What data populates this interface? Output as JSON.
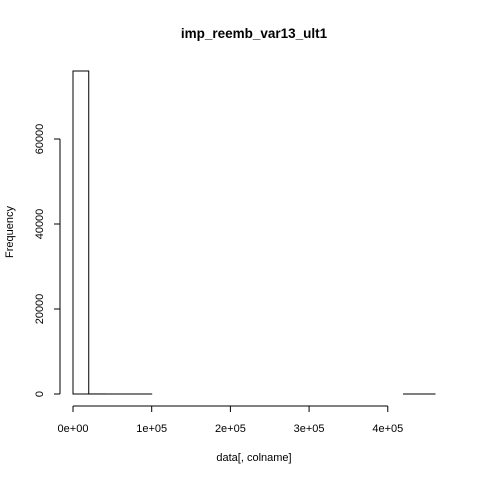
{
  "chart_data": {
    "type": "bar",
    "subtype": "histogram",
    "title": "imp_reemb_var13_ult1",
    "xlabel": "data[, colname]",
    "ylabel": "Frequency",
    "xlim": [
      0,
      460000
    ],
    "ylim": [
      0,
      76000
    ],
    "x_ticks": [
      0,
      100000,
      200000,
      300000,
      400000
    ],
    "x_tick_labels": [
      "0e+00",
      "1e+05",
      "2e+05",
      "3e+05",
      "4e+05"
    ],
    "y_ticks": [
      0,
      20000,
      40000,
      60000
    ],
    "y_tick_labels": [
      "0",
      "20000",
      "40000",
      "60000"
    ],
    "bins": [
      {
        "x0": 0,
        "x1": 20000,
        "count": 76000
      },
      {
        "x0": 20000,
        "x1": 40000,
        "count": 12
      },
      {
        "x0": 40000,
        "x1": 60000,
        "count": 3
      },
      {
        "x0": 60000,
        "x1": 80000,
        "count": 1
      },
      {
        "x0": 80000,
        "x1": 100000,
        "count": 1
      },
      {
        "x0": 100000,
        "x1": 120000,
        "count": 0
      },
      {
        "x0": 120000,
        "x1": 140000,
        "count": 0
      },
      {
        "x0": 140000,
        "x1": 160000,
        "count": 0
      },
      {
        "x0": 160000,
        "x1": 180000,
        "count": 0
      },
      {
        "x0": 180000,
        "x1": 200000,
        "count": 0
      },
      {
        "x0": 200000,
        "x1": 220000,
        "count": 0
      },
      {
        "x0": 220000,
        "x1": 240000,
        "count": 0
      },
      {
        "x0": 240000,
        "x1": 260000,
        "count": 0
      },
      {
        "x0": 260000,
        "x1": 280000,
        "count": 0
      },
      {
        "x0": 280000,
        "x1": 300000,
        "count": 0
      },
      {
        "x0": 300000,
        "x1": 320000,
        "count": 0
      },
      {
        "x0": 320000,
        "x1": 340000,
        "count": 0
      },
      {
        "x0": 340000,
        "x1": 360000,
        "count": 0
      },
      {
        "x0": 360000,
        "x1": 380000,
        "count": 0
      },
      {
        "x0": 380000,
        "x1": 400000,
        "count": 0
      },
      {
        "x0": 400000,
        "x1": 420000,
        "count": 0
      },
      {
        "x0": 420000,
        "x1": 440000,
        "count": 1
      },
      {
        "x0": 440000,
        "x1": 460000,
        "count": 1
      }
    ],
    "grid": false,
    "legend": "none",
    "bar_fill": "#ffffff",
    "bar_stroke": "#000000"
  }
}
